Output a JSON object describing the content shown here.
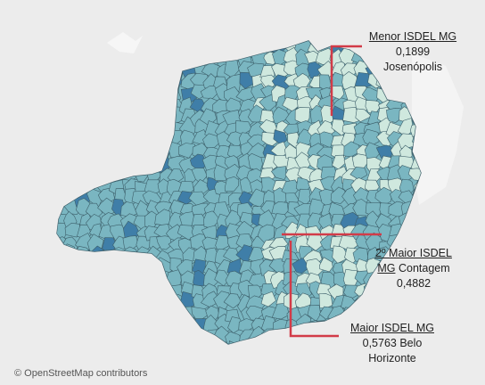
{
  "callouts": {
    "min": {
      "title": "Menor ISDEL MG",
      "value": "0,1899",
      "city": "Josenópolis"
    },
    "second": {
      "title_a": "2º Maior ISDEL ",
      "title_b": "MG",
      "city": "Contagem",
      "value": "0,4882"
    },
    "max": {
      "title": "Maior ISDEL MG",
      "value_city": "0,5763 Belo",
      "city2": "Horizonte"
    }
  },
  "attribution": "© OpenStreetMap contributors",
  "colors": {
    "background": "#ececec",
    "region_main": "#7ab6c1",
    "region_light": "#cfe8de",
    "region_dark": "#3f7ea8",
    "border": "#3d5f6a",
    "callout_line": "#d23b48"
  }
}
